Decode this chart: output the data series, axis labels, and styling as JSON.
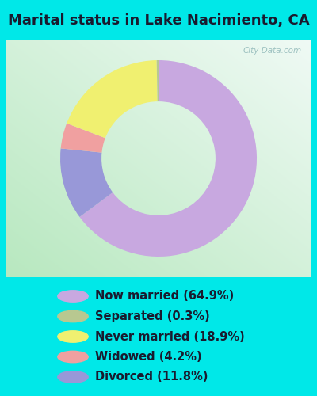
{
  "title": "Marital status in Lake Nacimiento, CA",
  "slices": [
    64.9,
    11.8,
    4.2,
    18.9,
    0.3
  ],
  "labels": [
    "Now married (64.9%)",
    "Separated (0.3%)",
    "Never married (18.9%)",
    "Widowed (4.2%)",
    "Divorced (11.8%)"
  ],
  "legend_colors": [
    "#c8a8e0",
    "#b8c890",
    "#f0f070",
    "#f0a0a0",
    "#9898d8"
  ],
  "pie_colors": [
    "#c8a8e0",
    "#9898d8",
    "#f0a0a0",
    "#f0f070",
    "#b8c890"
  ],
  "bg_cyan": "#00e8e8",
  "chart_bg_topleft": "#b8e8c0",
  "chart_bg_center": "#e8f4f0",
  "title_fontsize": 13,
  "legend_fontsize": 10.5,
  "watermark": "City-Data.com"
}
